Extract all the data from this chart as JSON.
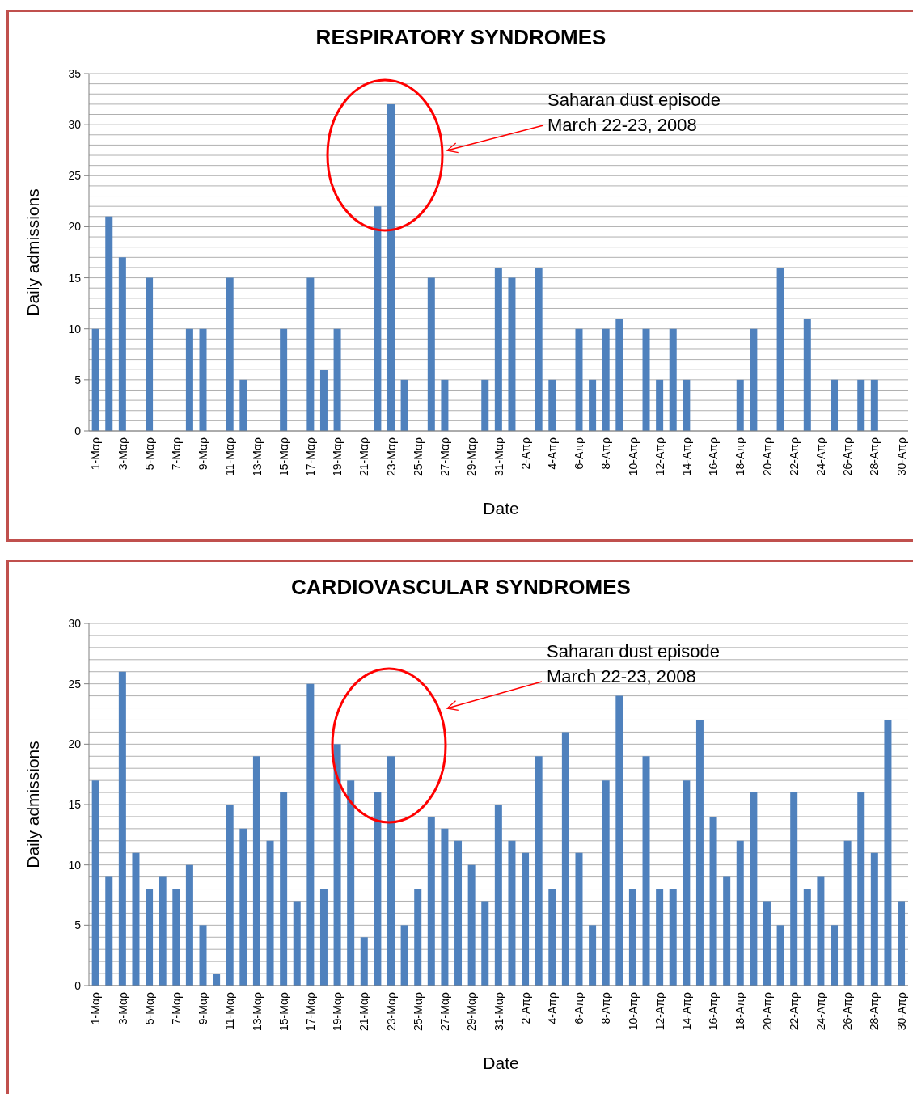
{
  "chart_data": [
    {
      "type": "bar",
      "title": "RESPIRATORY SYNDROMES",
      "xlabel": "Date",
      "ylabel": "Daily admissions",
      "categories": [
        "1-Μαρ",
        null,
        "3-Μαρ",
        null,
        "5-Μαρ",
        null,
        "7-Μαρ",
        null,
        "9-Μαρ",
        null,
        "11-Μαρ",
        null,
        "13-Μαρ",
        null,
        "15-Μαρ",
        null,
        "17-Μαρ",
        null,
        "19-Μαρ",
        null,
        "21-Μαρ",
        null,
        "23-Μαρ",
        null,
        "25-Μαρ",
        null,
        "27-Μαρ",
        null,
        "29-Μαρ",
        null,
        "31-Μαρ",
        null,
        "2-Απρ",
        null,
        "4-Απρ",
        null,
        "6-Απρ",
        null,
        "8-Απρ",
        null,
        "10-Απρ",
        null,
        "12-Απρ",
        null,
        "14-Απρ",
        null,
        "16-Απρ",
        null,
        "18-Απρ",
        null,
        "20-Απρ",
        null,
        "22-Απρ",
        null,
        "24-Απρ",
        null,
        "26-Απρ",
        null,
        "28-Απρ",
        null,
        "30-Απρ"
      ],
      "values": [
        10,
        21,
        17,
        0,
        15,
        0,
        0,
        10,
        10,
        0,
        15,
        5,
        0,
        0,
        10,
        0,
        15,
        6,
        10,
        0,
        0,
        22,
        32,
        5,
        0,
        15,
        5,
        0,
        0,
        5,
        16,
        15,
        0,
        16,
        5,
        0,
        10,
        5,
        10,
        11,
        0,
        10,
        5,
        10,
        5,
        0,
        0,
        0,
        5,
        10,
        0,
        16,
        0,
        11,
        0,
        5,
        0,
        5,
        5,
        0,
        0
      ],
      "color": "#4f81bd",
      "ylim": [
        0,
        35
      ],
      "yticks": [
        0,
        {
          "value": 1,
          "label": null
        },
        {
          "value": 2,
          "label": null
        },
        {
          "value": 3,
          "label": null
        },
        {
          "value": 4,
          "label": null
        },
        5,
        {
          "value": 6,
          "label": null
        },
        {
          "value": 7,
          "label": null
        },
        {
          "value": 8,
          "label": null
        },
        {
          "value": 9,
          "label": null
        },
        10,
        {
          "value": 11,
          "label": null
        },
        {
          "value": 12,
          "label": null
        },
        {
          "value": 13,
          "label": null
        },
        {
          "value": 14,
          "label": null
        },
        15,
        {
          "value": 16,
          "label": null
        },
        {
          "value": 17,
          "label": null
        },
        {
          "value": 18,
          "label": null
        },
        {
          "value": 19,
          "label": null
        },
        20,
        {
          "value": 21,
          "label": null
        },
        {
          "value": 22,
          "label": null
        },
        {
          "value": 23,
          "label": null
        },
        {
          "value": 24,
          "label": null
        },
        25,
        {
          "value": 26,
          "label": null
        },
        {
          "value": 27,
          "label": null
        },
        {
          "value": 28,
          "label": null
        },
        {
          "value": 29,
          "label": null
        },
        30,
        {
          "value": 31,
          "label": null
        },
        {
          "value": 32,
          "label": null
        },
        {
          "value": 33,
          "label": null
        },
        {
          "value": 34,
          "label": null
        },
        35
      ],
      "grid": "y",
      "annotations": [
        "Saharan dust episode",
        "March 22-23, 2008"
      ]
    },
    {
      "type": "bar",
      "title": "CARDIOVASCULAR SYNDROMES",
      "xlabel": "Date",
      "ylabel": "Daily admissions",
      "categories": [
        "1-Μαρ",
        null,
        "3-Μαρ",
        null,
        "5-Μαρ",
        null,
        "7-Μαρ",
        null,
        "9-Μαρ",
        null,
        "11-Μαρ",
        null,
        "13-Μαρ",
        null,
        "15-Μαρ",
        null,
        "17-Μαρ",
        null,
        "19-Μαρ",
        null,
        "21-Μαρ",
        null,
        "23-Μαρ",
        null,
        "25-Μαρ",
        null,
        "27-Μαρ",
        null,
        "29-Μαρ",
        null,
        "31-Μαρ",
        null,
        "2-Απρ",
        null,
        "4-Απρ",
        null,
        "6-Απρ",
        null,
        "8-Απρ",
        null,
        "10-Απρ",
        null,
        "12-Απρ",
        null,
        "14-Απρ",
        null,
        "16-Απρ",
        null,
        "18-Απρ",
        null,
        "20-Απρ",
        null,
        "22-Απρ",
        null,
        "24-Απρ",
        null,
        "26-Απρ",
        null,
        "28-Απρ",
        null,
        "30-Απρ"
      ],
      "values": [
        17,
        9,
        26,
        11,
        8,
        9,
        8,
        10,
        5,
        1,
        15,
        13,
        19,
        12,
        16,
        7,
        25,
        8,
        20,
        17,
        4,
        16,
        19,
        5,
        8,
        14,
        13,
        12,
        10,
        7,
        15,
        12,
        11,
        19,
        8,
        21,
        11,
        5,
        17,
        24,
        8,
        19,
        8,
        8,
        17,
        22,
        14,
        9,
        12,
        16,
        7,
        5,
        16,
        8,
        9,
        5,
        12,
        16,
        11,
        22,
        7
      ],
      "color": "#4f81bd",
      "ylim": [
        0,
        30
      ],
      "yticks": [
        0,
        {
          "value": 1,
          "label": null
        },
        {
          "value": 2,
          "label": null
        },
        {
          "value": 3,
          "label": null
        },
        {
          "value": 4,
          "label": null
        },
        5,
        {
          "value": 6,
          "label": null
        },
        {
          "value": 7,
          "label": null
        },
        {
          "value": 8,
          "label": null
        },
        {
          "value": 9,
          "label": null
        },
        10,
        {
          "value": 11,
          "label": null
        },
        {
          "value": 12,
          "label": null
        },
        {
          "value": 13,
          "label": null
        },
        {
          "value": 14,
          "label": null
        },
        15,
        {
          "value": 16,
          "label": null
        },
        {
          "value": 17,
          "label": null
        },
        {
          "value": 18,
          "label": null
        },
        {
          "value": 19,
          "label": null
        },
        20,
        {
          "value": 21,
          "label": null
        },
        {
          "value": 22,
          "label": null
        },
        {
          "value": 23,
          "label": null
        },
        {
          "value": 24,
          "label": null
        },
        25,
        {
          "value": 26,
          "label": null
        },
        {
          "value": 27,
          "label": null
        },
        {
          "value": 28,
          "label": null
        },
        {
          "value": 29,
          "label": null
        },
        30
      ],
      "grid": "y",
      "annotations": [
        "Saharan dust episode",
        "March 22-23, 2008"
      ]
    }
  ]
}
